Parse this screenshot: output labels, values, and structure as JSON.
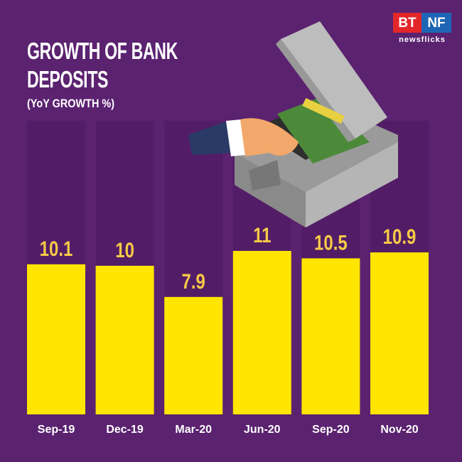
{
  "logo": {
    "left": "BT",
    "right": "NF",
    "tagline": "newsflicks"
  },
  "chart_data": {
    "type": "bar",
    "title": "GROWTH OF BANK DEPOSITS",
    "subtitle": "(YoY GROWTH %)",
    "categories": [
      "Sep-19",
      "Dec-19",
      "Mar-20",
      "Jun-20",
      "Sep-20",
      "Nov-20"
    ],
    "values": [
      10.1,
      10,
      7.9,
      11,
      10.5,
      10.9
    ],
    "color": "#ffe500"
  }
}
